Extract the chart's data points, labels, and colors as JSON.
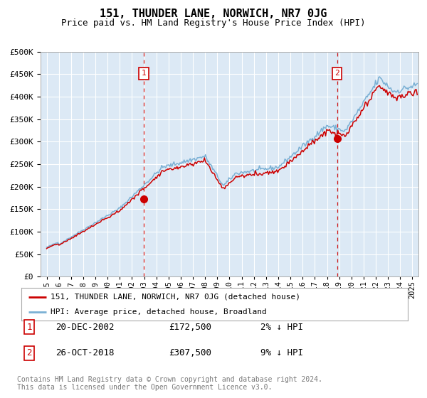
{
  "title": "151, THUNDER LANE, NORWICH, NR7 0JG",
  "subtitle": "Price paid vs. HM Land Registry's House Price Index (HPI)",
  "plot_bg_color": "#dce9f5",
  "hpi_color": "#7ab0d4",
  "price_color": "#cc0000",
  "sale1_date": "20-DEC-2002",
  "sale1_price": 172500,
  "sale1_year": 2002.97,
  "sale2_date": "26-OCT-2018",
  "sale2_price": 307500,
  "sale2_year": 2018.82,
  "sale1_hpi_diff": "2% ↓ HPI",
  "sale2_hpi_diff": "9% ↓ HPI",
  "legend_line1": "151, THUNDER LANE, NORWICH, NR7 0JG (detached house)",
  "legend_line2": "HPI: Average price, detached house, Broadland",
  "footer1": "Contains HM Land Registry data © Crown copyright and database right 2024.",
  "footer2": "This data is licensed under the Open Government Licence v3.0.",
  "ylim": [
    0,
    500000
  ],
  "yticks": [
    0,
    50000,
    100000,
    150000,
    200000,
    250000,
    300000,
    350000,
    400000,
    450000,
    500000
  ],
  "xlim_start": 1994.5,
  "xlim_end": 2025.5,
  "xticks": [
    1995,
    1996,
    1997,
    1998,
    1999,
    2000,
    2001,
    2002,
    2003,
    2004,
    2005,
    2006,
    2007,
    2008,
    2009,
    2010,
    2011,
    2012,
    2013,
    2014,
    2015,
    2016,
    2017,
    2018,
    2019,
    2020,
    2021,
    2022,
    2023,
    2024,
    2025
  ]
}
